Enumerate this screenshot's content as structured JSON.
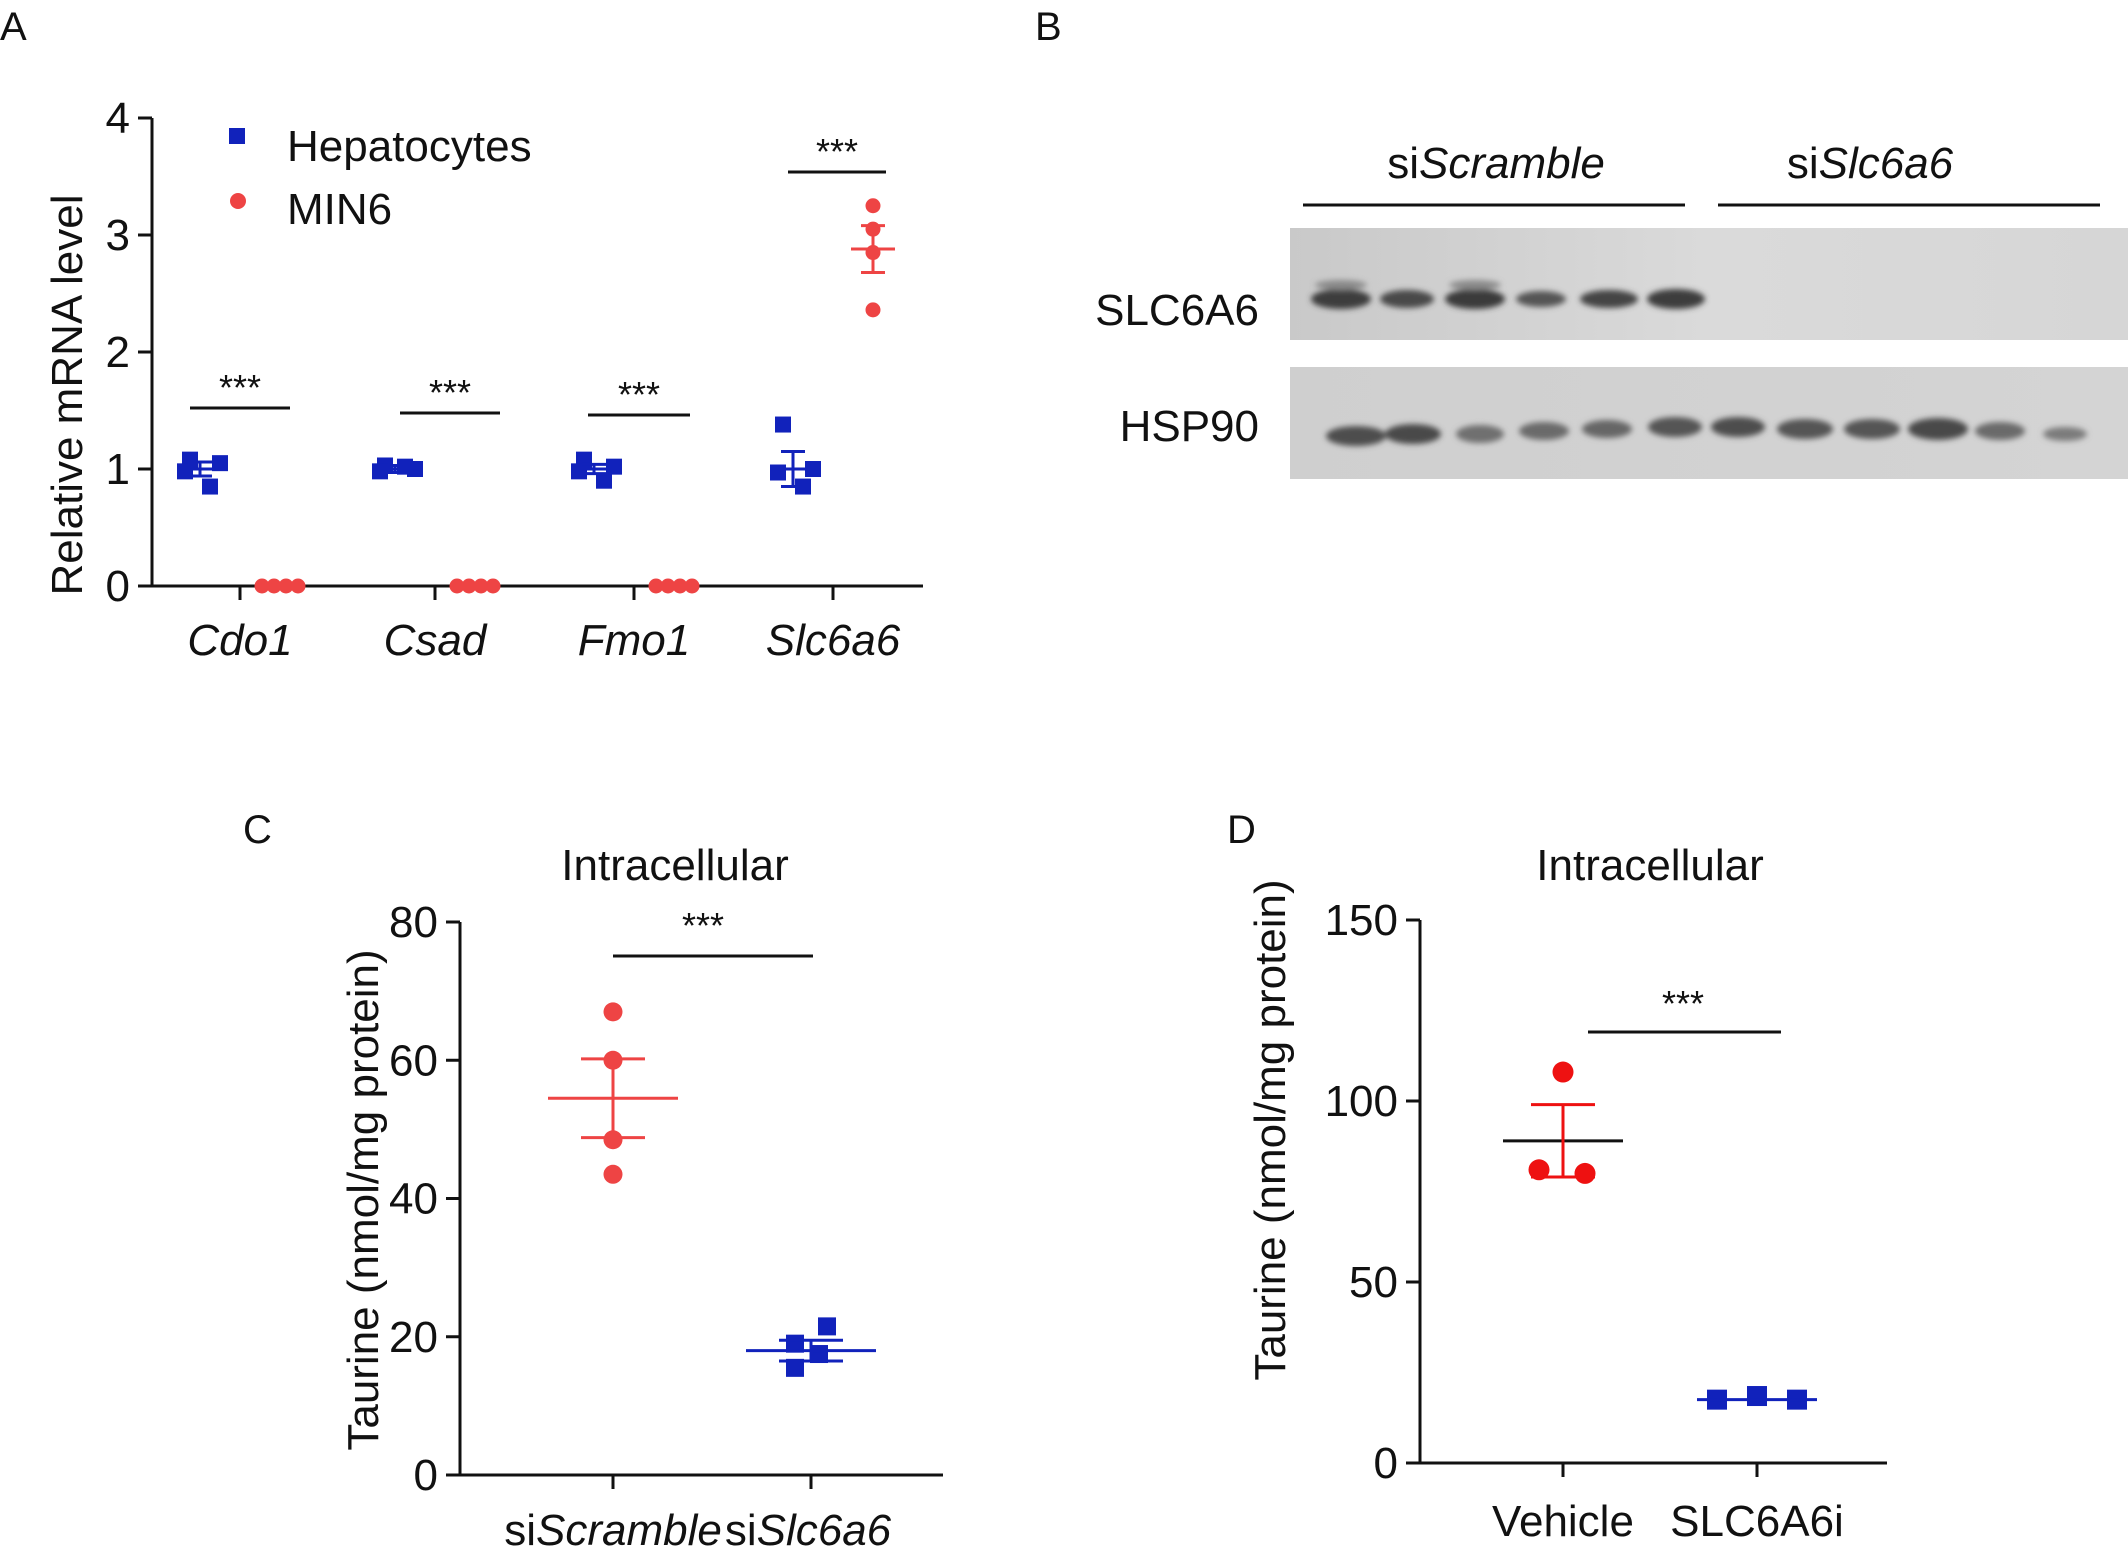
{
  "panels": {
    "A": {
      "letter": "A"
    },
    "B": {
      "letter": "B",
      "groups": [
        {
          "prefix": "si",
          "italic": "Scramble"
        },
        {
          "prefix": "si",
          "italic": "Slc6a6"
        }
      ],
      "row_labels": [
        "SLC6A6",
        "HSP90"
      ]
    },
    "C": {
      "letter": "C"
    },
    "D": {
      "letter": "D"
    }
  },
  "chart_data": [
    {
      "panel": "A",
      "type": "scatter",
      "title": "",
      "ylabel": "Relative mRNA level",
      "ylim": [
        0,
        4
      ],
      "yticks": [
        "0",
        "1",
        "2",
        "3",
        "4"
      ],
      "categories": [
        "Cdo1",
        "Csad",
        "Fmo1",
        "Slc6a6"
      ],
      "legend": "top-left",
      "series": [
        {
          "name": "Hepatocytes",
          "color": "#1122bb",
          "marker": "square",
          "means": [
            1.0,
            1.0,
            1.0,
            1.0
          ],
          "sems": [
            0.06,
            0.03,
            0.04,
            0.15
          ],
          "points": [
            [
              1.08,
              1.05,
              0.98,
              0.85
            ],
            [
              1.03,
              1.0,
              0.98,
              1.02
            ],
            [
              1.08,
              1.02,
              0.98,
              0.9
            ],
            [
              1.38,
              1.0,
              0.97,
              0.85
            ]
          ]
        },
        {
          "name": "MIN6",
          "color": "#ee4444",
          "marker": "circle",
          "means": [
            0.0,
            0.0,
            0.0,
            2.88
          ],
          "sems": [
            0.0,
            0.0,
            0.0,
            0.2
          ],
          "points": [
            [
              0.0,
              0.0,
              0.0,
              0.0
            ],
            [
              0.0,
              0.0,
              0.0,
              0.0
            ],
            [
              0.0,
              0.0,
              0.0,
              0.0
            ],
            [
              3.25,
              3.05,
              2.85,
              2.36
            ]
          ]
        }
      ],
      "significance": [
        "***",
        "***",
        "***",
        "***"
      ]
    },
    {
      "panel": "C",
      "type": "scatter",
      "title": "Intracellular",
      "ylabel": "Taurine (nmol/mg protein)",
      "ylim": [
        0,
        80
      ],
      "yticks": [
        "0",
        "20",
        "40",
        "60",
        "80"
      ],
      "categories": [
        {
          "prefix": "si",
          "italic": "Scramble"
        },
        {
          "prefix": "si",
          "italic": "Slc6a6"
        }
      ],
      "groups": [
        {
          "color": "#ee4444",
          "marker": "circle",
          "mean": 54.5,
          "sem": 5.7,
          "points": [
            67,
            60,
            48.5,
            43.5
          ]
        },
        {
          "color": "#1122bb",
          "marker": "square",
          "mean": 18.0,
          "sem": 1.5,
          "points": [
            21.5,
            19,
            17.5,
            15.5
          ]
        }
      ],
      "significance": "***"
    },
    {
      "panel": "D",
      "type": "scatter",
      "title": "Intracellular",
      "ylabel": "Taurine (nmol/mg protein)",
      "ylim": [
        0,
        150
      ],
      "yticks": [
        "0",
        "50",
        "100",
        "150"
      ],
      "categories": [
        "Vehicle",
        "SLC6A6i"
      ],
      "groups": [
        {
          "color": "#ee1111",
          "marker": "circle",
          "mean": 89,
          "sem": 10,
          "points": [
            108,
            81,
            80
          ]
        },
        {
          "color": "#1122bb",
          "marker": "square",
          "mean": 17.5,
          "sem": 0.5,
          "points": [
            17.5,
            18.5,
            17.5
          ]
        }
      ],
      "significance": "***"
    }
  ],
  "colors": {
    "axis": "#111111",
    "hepatocytes": "#1122bb",
    "min6": "#ee4444"
  }
}
